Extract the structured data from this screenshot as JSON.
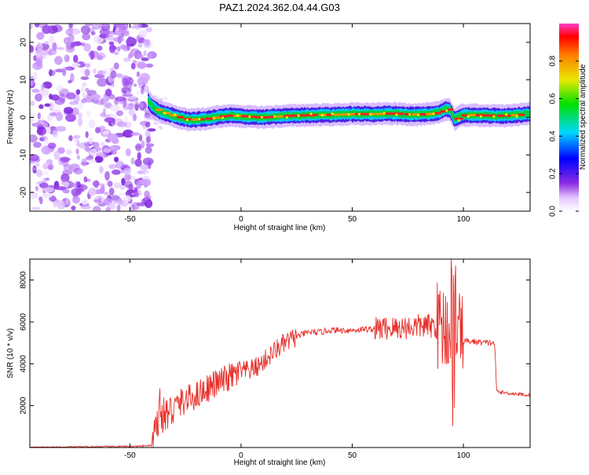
{
  "title": "PAZ1.2024.362.04.44.G03",
  "colorbar": {
    "label": "Normalized spectral amplitude",
    "ticks": [
      "0.0",
      "0.2",
      "0.4",
      "0.6",
      "0.8"
    ],
    "range": [
      0,
      1
    ]
  },
  "chart_data": [
    {
      "type": "heatmap",
      "xlabel": "Height of straight line (km)",
      "ylabel": "Frequency (Hz)",
      "xlim": [
        -95,
        130
      ],
      "ylim": [
        -25,
        25
      ],
      "xticks": [
        "-50",
        "0",
        "50",
        "100"
      ],
      "yticks": [
        "-20",
        "-10",
        "0",
        "10",
        "20"
      ],
      "noise_region_x": [
        -95,
        -40
      ],
      "ridge": {
        "x": [
          -42,
          -40,
          -38,
          -35,
          -30,
          -25,
          -20,
          -15,
          -10,
          -5,
          0,
          5,
          10,
          15,
          20,
          25,
          30,
          35,
          40,
          45,
          50,
          55,
          60,
          65,
          70,
          75,
          80,
          85,
          88,
          90,
          92,
          94,
          96,
          98,
          100,
          105,
          110,
          115,
          120,
          125,
          130
        ],
        "y": [
          4.5,
          3,
          2,
          1.2,
          0.3,
          -0.5,
          -0.6,
          -0.3,
          0.2,
          0.5,
          0.3,
          0.1,
          0.0,
          0.2,
          0.4,
          0.5,
          0.6,
          0.7,
          0.7,
          0.8,
          0.9,
          0.9,
          0.9,
          1.0,
          1.0,
          0.8,
          0.8,
          0.9,
          1.2,
          1.6,
          2.2,
          2.0,
          -0.5,
          0.2,
          0.6,
          0.6,
          0.5,
          0.4,
          0.5,
          0.7,
          1.0
        ]
      }
    },
    {
      "type": "line",
      "xlabel": "Height of straight line (km)",
      "ylabel": "SNR (10 * v/v)",
      "xlim": [
        -95,
        130
      ],
      "ylim": [
        0,
        9000
      ],
      "xticks": [
        "-50",
        "0",
        "50",
        "100"
      ],
      "yticks": [
        "2000",
        "4000",
        "6000",
        "8000"
      ],
      "color": "#e8302a",
      "series": [
        {
          "x": [
            -95,
            -80,
            -60,
            -45,
            -40,
            -37,
            -36,
            -35,
            -32,
            -28,
            -24,
            -20,
            -16,
            -12,
            -8,
            -4,
            0,
            4,
            8,
            12,
            16,
            20,
            25,
            30,
            35,
            40,
            45,
            50,
            55,
            60,
            65,
            70,
            75,
            80,
            85,
            88,
            90,
            92,
            94,
            95,
            96,
            97,
            98,
            100,
            105,
            110,
            114,
            115,
            116,
            120,
            125,
            130
          ],
          "y": [
            0,
            20,
            40,
            60,
            100,
            1200,
            1500,
            1500,
            1700,
            2100,
            2300,
            2500,
            2800,
            3000,
            3200,
            3400,
            3600,
            3700,
            3900,
            4300,
            4700,
            5000,
            5300,
            5500,
            5500,
            5600,
            5600,
            5600,
            5650,
            5650,
            5700,
            5700,
            5750,
            5800,
            5800,
            5800,
            5800,
            5800,
            5700,
            5600,
            5500,
            5300,
            5200,
            5100,
            5050,
            5000,
            5000,
            2700,
            2650,
            2600,
            2550,
            2500
          ]
        }
      ]
    }
  ]
}
